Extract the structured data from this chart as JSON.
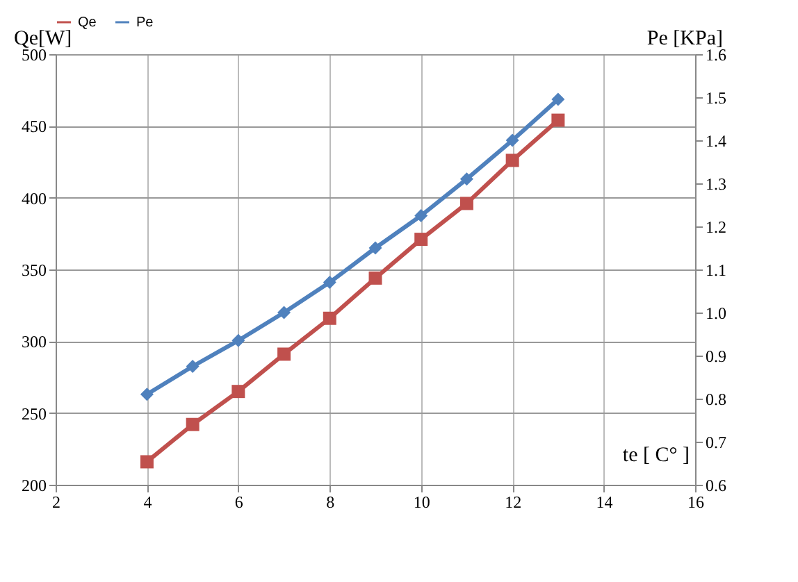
{
  "chart_data": {
    "type": "line",
    "xlabel": "te [ C° ]",
    "ylabel": "Qe[W]",
    "y2label": "Pe [KPa]",
    "x": [
      4,
      5,
      6,
      7,
      8,
      9,
      10,
      11,
      12,
      13
    ],
    "series": [
      {
        "name": "Qe",
        "color": "#c0504d",
        "marker": "square",
        "values": [
          216,
          242,
          265,
          291,
          316,
          344,
          371,
          396,
          426,
          454
        ]
      },
      {
        "name": "Pe",
        "color": "#4f81bd",
        "marker": "diamond",
        "axis": "y2",
        "values": [
          0.81,
          0.875,
          0.935,
          1.0,
          1.07,
          1.15,
          1.225,
          1.31,
          1.4,
          1.495
        ]
      }
    ],
    "xlim": [
      2,
      16
    ],
    "xticks": [
      2,
      4,
      6,
      8,
      10,
      12,
      14,
      16
    ],
    "ylim": [
      200,
      500
    ],
    "yticks": [
      200,
      250,
      300,
      350,
      400,
      450,
      500
    ],
    "y2lim": [
      0.6,
      1.6
    ],
    "y2ticks": [
      0.6,
      0.7,
      0.8,
      0.9,
      {
        "value": 1.0,
        "label": "1.0"
      },
      1.1,
      1.2,
      1.3,
      1.4,
      1.5,
      1.6
    ],
    "grid": true,
    "legend": "top",
    "line_style": "solid"
  }
}
